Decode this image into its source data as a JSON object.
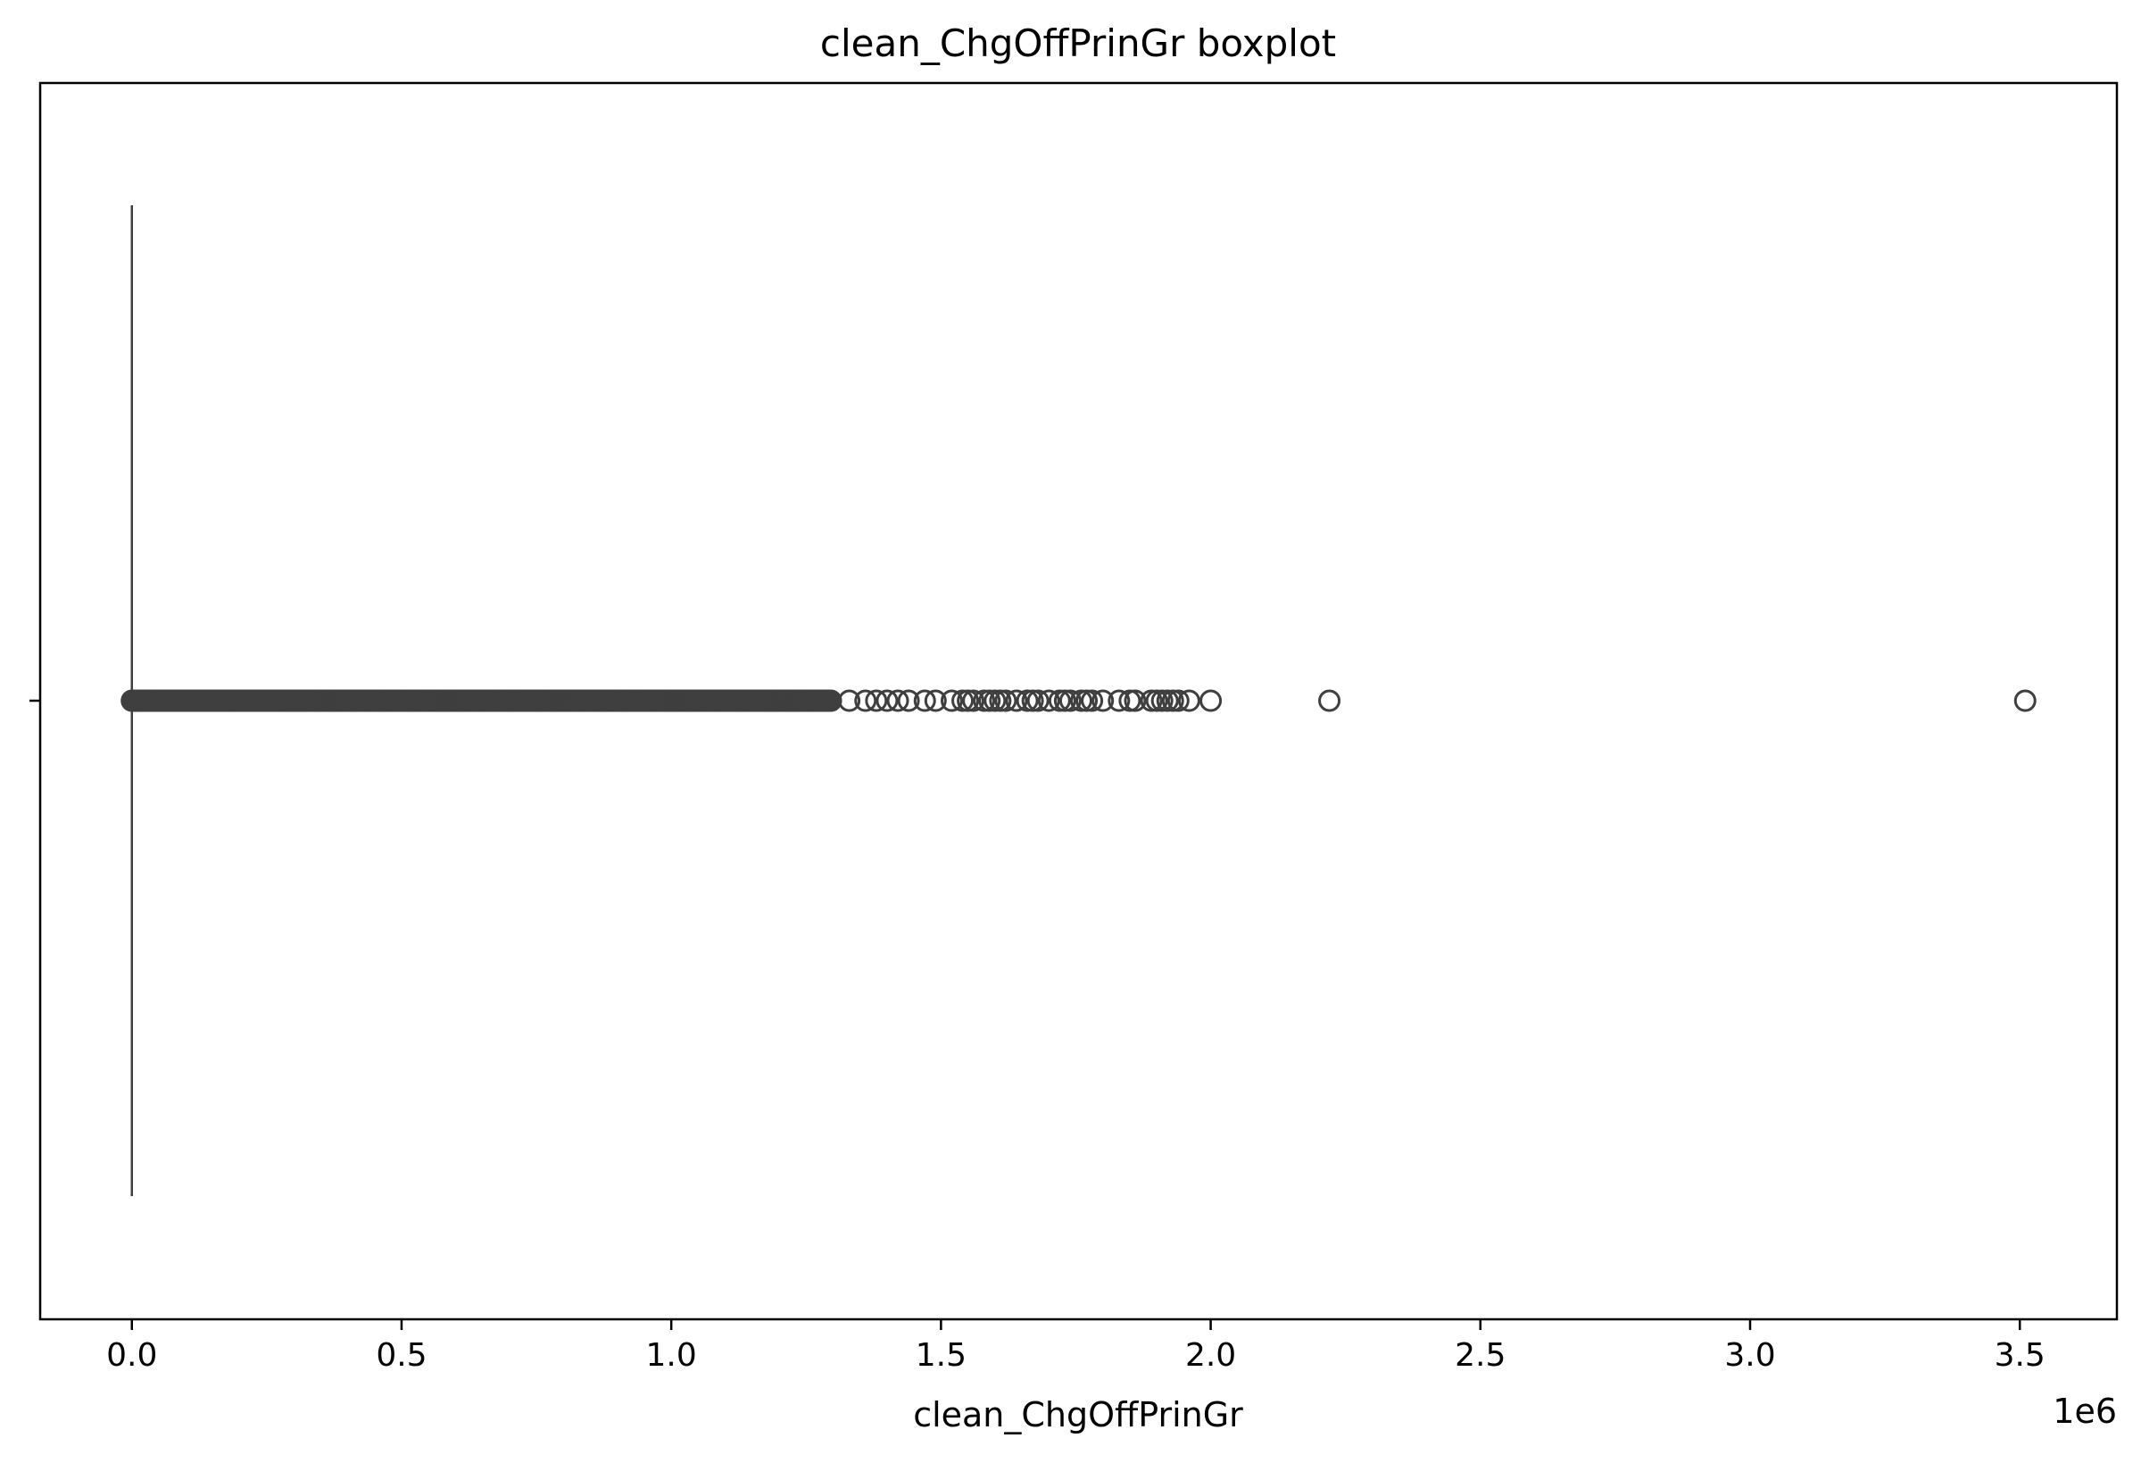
{
  "chart_data": {
    "type": "boxplot",
    "orientation": "horizontal",
    "title": "clean_ChgOffPrinGr boxplot",
    "xlabel": "clean_ChgOffPrinGr",
    "ylabel": "",
    "x_offset_label": "1e6",
    "xlim": [
      -0.17,
      3.68
    ],
    "xticks": [
      0.0,
      0.5,
      1.0,
      1.5,
      2.0,
      2.5,
      3.0,
      3.5
    ],
    "xtick_labels": [
      "0.0",
      "0.5",
      "1.0",
      "1.5",
      "2.0",
      "2.5",
      "3.0",
      "3.5"
    ],
    "yticks": [
      0
    ],
    "ytick_labels": [
      ""
    ],
    "grid": false,
    "box": {
      "min": 0.0,
      "q1": 0.0,
      "median": 0.0,
      "q3": 0.0,
      "max": 0.0
    },
    "outliers_dense_range": [
      0.0,
      1.3
    ],
    "outliers_sparse": [
      1.33,
      1.36,
      1.38,
      1.4,
      1.42,
      1.44,
      1.47,
      1.49,
      1.52,
      1.54,
      1.55,
      1.56,
      1.58,
      1.59,
      1.6,
      1.61,
      1.62,
      1.64,
      1.66,
      1.67,
      1.68,
      1.7,
      1.72,
      1.73,
      1.74,
      1.76,
      1.77,
      1.78,
      1.8,
      1.83,
      1.85,
      1.86,
      1.89,
      1.9,
      1.91,
      1.92,
      1.93,
      1.94,
      1.96,
      2.0,
      2.22,
      3.51
    ],
    "colors": {
      "box": "#3f3f3f",
      "axes": "#000000",
      "background": "#ffffff"
    }
  }
}
